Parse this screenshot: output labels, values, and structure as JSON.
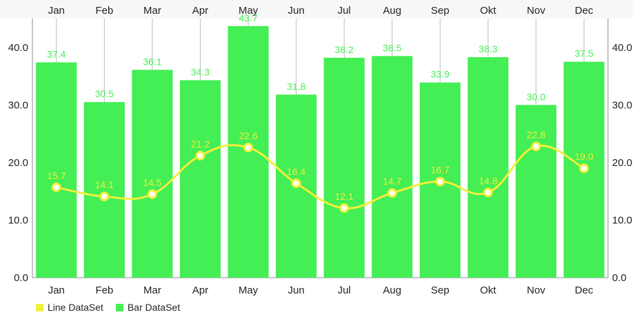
{
  "chart_data": {
    "type": "bar",
    "categories": [
      "Jan",
      "Feb",
      "Mar",
      "Apr",
      "May",
      "Jun",
      "Jul",
      "Aug",
      "Sep",
      "Okt",
      "Nov",
      "Dec"
    ],
    "series": [
      {
        "name": "Bar DataSet",
        "type": "bar",
        "color": "#44ee55",
        "label_color": "#44ee55",
        "values": [
          37.4,
          30.5,
          36.1,
          34.3,
          43.7,
          31.8,
          38.2,
          38.5,
          33.9,
          38.3,
          30.0,
          37.5
        ]
      },
      {
        "name": "Line DataSet",
        "type": "line",
        "smooth": true,
        "color": "#f2ef3a",
        "label_color": "#f2ef3a",
        "values": [
          15.7,
          14.1,
          14.5,
          21.2,
          22.6,
          16.4,
          12.1,
          14.7,
          16.7,
          14.8,
          22.8,
          19.0
        ]
      }
    ],
    "ylim": [
      0,
      45
    ],
    "yticks": [
      "0.0",
      "10.0",
      "20.0",
      "30.0",
      "40.0"
    ],
    "ytick_values": [
      0,
      10,
      20,
      30,
      40
    ],
    "axis_left": true,
    "axis_right": true,
    "x_labels_top": true,
    "x_labels_bottom": true,
    "grid_vertical": true,
    "grid_horizontal": false,
    "legend_position": "bottom-left"
  },
  "legend": [
    {
      "label": "Line DataSet",
      "color": "#f2ef3a"
    },
    {
      "label": "Bar DataSet",
      "color": "#44ee55"
    }
  ]
}
